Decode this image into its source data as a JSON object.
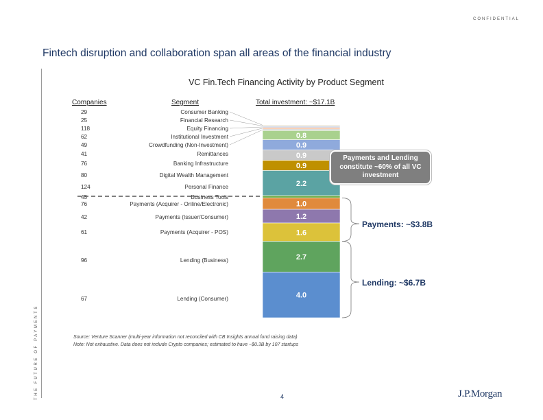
{
  "header": {
    "confidential": "CONFIDENTIAL",
    "title": "Fintech disruption and collaboration span all areas of the financial industry",
    "side_label": "THE FUTURE OF PAYMENTS"
  },
  "table_headers": {
    "companies": "Companies",
    "segment": "Segment",
    "total": "Total investment: ~$17.1B"
  },
  "callout": "Payments and Lending constitute ~60% of all VC investment",
  "brace_labels": {
    "payments": "Payments: ~$3.8B",
    "lending": "Lending: ~$6.7B"
  },
  "footer": {
    "source": "Source: Venture Scanner (multi-year information not reconciled with CB Insights annual fund raising data)",
    "note": "Note: Not exhaustive.  Data does not include Crypto companies; estimated to have ~$0.3B by 107 startups",
    "page": "4",
    "logo": "J.P.Morgan"
  },
  "chart_data": {
    "type": "bar",
    "title": "VC Fin.Tech Financing Activity by Product Segment",
    "stacked": true,
    "total": 17.1,
    "unit": "$B",
    "segments": [
      {
        "segment": "Consumer Banking",
        "companies": "29",
        "value": 0.05,
        "label": "",
        "color": "#c9c9c9"
      },
      {
        "segment": "Financial Research",
        "companies": "25",
        "value": 0.08,
        "label": "",
        "color": "#e6d0a4"
      },
      {
        "segment": "Equity Financing",
        "companies": "118",
        "value": 0.1,
        "label": "",
        "color": "#b4c7e7"
      },
      {
        "segment": "Institutional Investment",
        "companies": "62",
        "value": 0.12,
        "label": "",
        "color": "#f4b183"
      },
      {
        "segment": "Crowdfunding (Non-Investment)",
        "companies": "49",
        "value": 0.15,
        "label": "",
        "color": "#d9d9d9"
      },
      {
        "segment": "Remittances",
        "companies": "41",
        "value": 0.8,
        "label": "0.8",
        "color": "#a9d18e"
      },
      {
        "segment": "Banking Infrastructure",
        "companies": "76",
        "value": 0.9,
        "label": "0.9",
        "color": "#8faadc"
      },
      {
        "segment": "",
        "companies": "",
        "value": 0.9,
        "label": "0.9",
        "color": "#c9c9c9"
      },
      {
        "segment": "Digital Wealth Management",
        "companies": "80",
        "value": 0.9,
        "label": "0.9",
        "color": "#bf9000"
      },
      {
        "segment": "Personal Finance",
        "companies": "124",
        "value": 2.2,
        "label": "2.2",
        "color": "#5ba3a3"
      },
      {
        "segment": "Business Tools",
        "companies": "45",
        "value": 0.2,
        "label": "",
        "color": "#70ad47"
      },
      {
        "segment": "Payments (Acquirer - Online/Electronic)",
        "companies": "76",
        "value": 1.0,
        "label": "1.0",
        "color": "#e08a3c"
      },
      {
        "segment": "Payments (Issuer/Consumer)",
        "companies": "42",
        "value": 1.2,
        "label": "1.2",
        "color": "#8e78ad"
      },
      {
        "segment": "Payments (Acquirer - POS)",
        "companies": "61",
        "value": 1.6,
        "label": "1.6",
        "color": "#dcc23a"
      },
      {
        "segment": "Lending (Business)",
        "companies": "96",
        "value": 2.7,
        "label": "2.7",
        "color": "#5fa45e"
      },
      {
        "segment": "Lending (Consumer)",
        "companies": "67",
        "value": 4.0,
        "label": "4.0",
        "color": "#5b8ecf"
      }
    ]
  }
}
